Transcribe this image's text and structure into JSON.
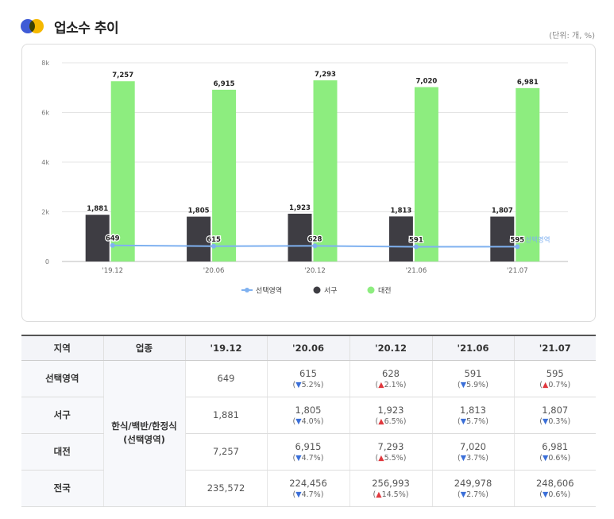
{
  "header": {
    "title": "업소수 추이",
    "unit": "(단위: 개, %)"
  },
  "colors": {
    "selected": "#7fb1f0",
    "seogu": "#3e3d43",
    "daejeon": "#8ded7f"
  },
  "chart_data": {
    "type": "bar",
    "categories": [
      "'19.12",
      "'20.06",
      "'20.12",
      "'21.06",
      "'21.07"
    ],
    "series": [
      {
        "name": "선택영역",
        "kind": "line",
        "values": [
          649,
          615,
          628,
          591,
          595
        ]
      },
      {
        "name": "서구",
        "kind": "bar",
        "values": [
          1881,
          1805,
          1923,
          1813,
          1807
        ]
      },
      {
        "name": "대전",
        "kind": "bar",
        "values": [
          7257,
          6915,
          7293,
          7020,
          6981
        ]
      }
    ],
    "yticks": [
      "0",
      "2k",
      "4k",
      "6k",
      "8k"
    ],
    "ylim": [
      0,
      8000
    ],
    "grid": true,
    "legend": "bottom-center",
    "annotation": "선택영역"
  },
  "table": {
    "headers": [
      "지역",
      "업종",
      "'19.12",
      "'20.06",
      "'20.12",
      "'21.06",
      "'21.07"
    ],
    "business": [
      "한식/백반/한정식",
      "(선택영역)"
    ],
    "rows": [
      {
        "region": "선택영역",
        "cells": [
          {
            "value": "649"
          },
          {
            "value": "615",
            "dir": "down",
            "pct": "5.2%"
          },
          {
            "value": "628",
            "dir": "up",
            "pct": "2.1%"
          },
          {
            "value": "591",
            "dir": "down",
            "pct": "5.9%"
          },
          {
            "value": "595",
            "dir": "up",
            "pct": "0.7%"
          }
        ]
      },
      {
        "region": "서구",
        "cells": [
          {
            "value": "1,881"
          },
          {
            "value": "1,805",
            "dir": "down",
            "pct": "4.0%"
          },
          {
            "value": "1,923",
            "dir": "up",
            "pct": "6.5%"
          },
          {
            "value": "1,813",
            "dir": "down",
            "pct": "5.7%"
          },
          {
            "value": "1,807",
            "dir": "down",
            "pct": "0.3%"
          }
        ]
      },
      {
        "region": "대전",
        "cells": [
          {
            "value": "7,257"
          },
          {
            "value": "6,915",
            "dir": "down",
            "pct": "4.7%"
          },
          {
            "value": "7,293",
            "dir": "up",
            "pct": "5.5%"
          },
          {
            "value": "7,020",
            "dir": "down",
            "pct": "3.7%"
          },
          {
            "value": "6,981",
            "dir": "down",
            "pct": "0.6%"
          }
        ]
      },
      {
        "region": "전국",
        "cells": [
          {
            "value": "235,572"
          },
          {
            "value": "224,456",
            "dir": "down",
            "pct": "4.7%"
          },
          {
            "value": "256,993",
            "dir": "up",
            "pct": "14.5%"
          },
          {
            "value": "249,978",
            "dir": "down",
            "pct": "2.7%"
          },
          {
            "value": "248,606",
            "dir": "down",
            "pct": "0.6%"
          }
        ]
      }
    ]
  }
}
